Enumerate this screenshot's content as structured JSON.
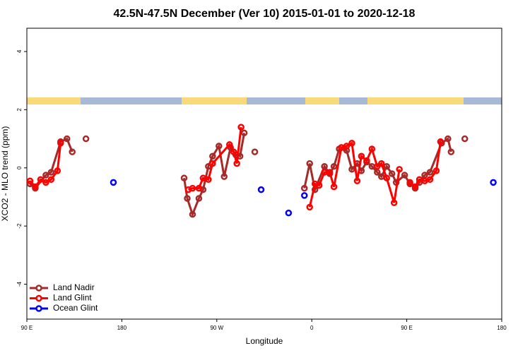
{
  "chart_data": {
    "type": "line",
    "title": "42.5N-47.5N December (Ver 10)   2015-01-01 to 2020-12-18",
    "x_label": "Longitude",
    "y_label": "XCO2 - MLO trend (ppm)",
    "xlim": [
      90,
      540
    ],
    "ylim": [
      -5.2,
      4.8
    ],
    "xticks": [
      {
        "value": 90,
        "label": "90 E"
      },
      180,
      {
        "value": 270,
        "label": "90 W"
      },
      {
        "value": 360,
        "label": "0"
      },
      {
        "value": 450,
        "label": "90 E"
      },
      180
    ],
    "yticks": [
      -4,
      -2,
      0,
      2,
      4
    ],
    "legend": "bottom-left",
    "series": [
      {
        "name": "Land Nadir",
        "color": "#a52a2a",
        "x": [
          93,
          98,
          108,
          113,
          122,
          128,
          133,
          null,
          146,
          null,
          239,
          242,
          247,
          253,
          257,
          262,
          266,
          272,
          277,
          283,
          288,
          292,
          296,
          null,
          306,
          null,
          353,
          358,
          363,
          372,
          377,
          381,
          386,
          393,
          398,
          403,
          407,
          412,
          417,
          422,
          426,
          431,
          436,
          440,
          448,
          453,
          458,
          462,
          467,
          472,
          483,
          489,
          492,
          null,
          505
        ],
        "values": [
          -0.55,
          -0.7,
          -0.25,
          -0.15,
          0.9,
          1.0,
          0.55,
          null,
          1.0,
          null,
          -0.35,
          -1.05,
          -1.6,
          -1.05,
          -0.75,
          0.05,
          0.4,
          0.75,
          -0.3,
          0.7,
          0.45,
          0.4,
          1.2,
          null,
          0.55,
          null,
          -0.7,
          0.15,
          -0.75,
          0.05,
          -0.2,
          0.05,
          0.65,
          0.6,
          -0.05,
          0.15,
          -0.1,
          0.2,
          0.05,
          -0.15,
          -0.3,
          0.05,
          -0.2,
          -0.5,
          -0.25,
          -0.55,
          -0.7,
          -0.5,
          -0.25,
          -0.15,
          0.85,
          1.0,
          0.55,
          null,
          1.0
        ]
      },
      {
        "name": "Land Glint",
        "color": "#ff0000",
        "x": [
          93,
          98,
          103,
          108,
          113,
          119,
          122,
          null,
          243,
          247,
          253,
          257,
          262,
          266,
          282,
          286,
          289,
          293,
          null,
          358,
          363,
          367,
          372,
          377,
          381,
          388,
          393,
          398,
          403,
          407,
          412,
          417,
          422,
          426,
          431,
          438,
          443,
          null,
          453,
          458,
          462,
          467,
          472,
          478,
          482
        ],
        "values": [
          -0.45,
          -0.65,
          -0.4,
          -0.5,
          -0.4,
          -0.1,
          0.85,
          null,
          -0.75,
          -0.7,
          -0.7,
          -0.35,
          -0.4,
          0.15,
          0.8,
          0.55,
          0.15,
          1.4,
          null,
          -1.35,
          -0.55,
          -0.6,
          -0.15,
          -0.15,
          -0.65,
          0.7,
          0.75,
          0.85,
          -0.45,
          0.4,
          0.25,
          0.65,
          0.05,
          0.15,
          -0.35,
          -1.2,
          -0.05,
          null,
          -0.5,
          -0.65,
          -0.4,
          -0.45,
          -0.4,
          -0.1,
          0.9
        ]
      },
      {
        "name": "Ocean Glint",
        "color": "#0000ff",
        "connect": false,
        "x": [
          172,
          312,
          338,
          353,
          532
        ],
        "values": [
          -0.5,
          -0.75,
          -1.55,
          -0.95,
          -0.5
        ]
      }
    ]
  }
}
